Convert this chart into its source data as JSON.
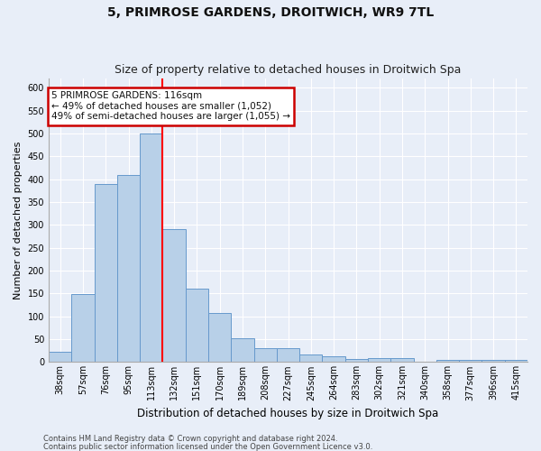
{
  "title": "5, PRIMROSE GARDENS, DROITWICH, WR9 7TL",
  "subtitle": "Size of property relative to detached houses in Droitwich Spa",
  "xlabel": "Distribution of detached houses by size in Droitwich Spa",
  "ylabel": "Number of detached properties",
  "categories": [
    "38sqm",
    "57sqm",
    "76sqm",
    "95sqm",
    "113sqm",
    "132sqm",
    "151sqm",
    "170sqm",
    "189sqm",
    "208sqm",
    "227sqm",
    "245sqm",
    "264sqm",
    "283sqm",
    "302sqm",
    "321sqm",
    "340sqm",
    "358sqm",
    "377sqm",
    "396sqm",
    "415sqm"
  ],
  "values": [
    22,
    148,
    390,
    410,
    500,
    290,
    160,
    108,
    53,
    30,
    30,
    16,
    12,
    7,
    9,
    9,
    0,
    4,
    4,
    5,
    4
  ],
  "bar_color": "#b8d0e8",
  "bar_edge_color": "#6699cc",
  "red_line_index": 4.5,
  "annotation_line1": "5 PRIMROSE GARDENS: 116sqm",
  "annotation_line2": "← 49% of detached houses are smaller (1,052)",
  "annotation_line3": "49% of semi-detached houses are larger (1,055) →",
  "ylim": [
    0,
    620
  ],
  "yticks": [
    0,
    50,
    100,
    150,
    200,
    250,
    300,
    350,
    400,
    450,
    500,
    550,
    600
  ],
  "footnote1": "Contains HM Land Registry data © Crown copyright and database right 2024.",
  "footnote2": "Contains public sector information licensed under the Open Government Licence v3.0.",
  "background_color": "#e8eef8",
  "grid_color": "#ffffff",
  "title_fontsize": 10,
  "subtitle_fontsize": 9,
  "tick_fontsize": 7,
  "ylabel_fontsize": 8,
  "xlabel_fontsize": 8.5,
  "annot_fontsize": 7.5,
  "footnote_fontsize": 6
}
